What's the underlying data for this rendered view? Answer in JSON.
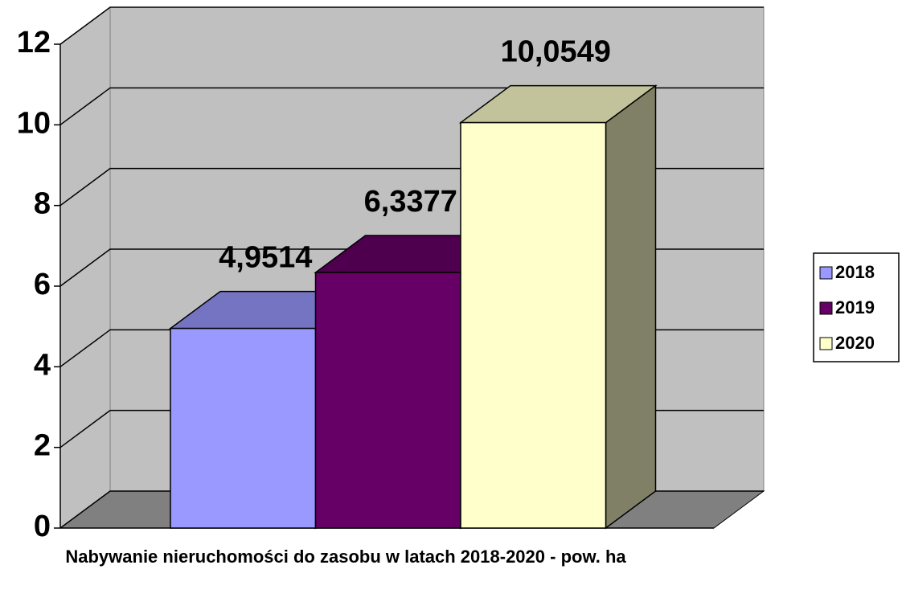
{
  "chart_data": {
    "type": "bar3d",
    "x_label": "Nabywanie nieruchomości do zasobu w latach 2018-2020 - pow. ha",
    "series": [
      {
        "name": "2018",
        "color": "#9999ff",
        "values": [
          4.9514
        ],
        "value_labels": [
          "4,9514"
        ]
      },
      {
        "name": "2019",
        "color": "#660066",
        "values": [
          6.3377
        ],
        "value_labels": [
          "6,3377"
        ]
      },
      {
        "name": "2020",
        "color": "#ffffcc",
        "values": [
          10.0549
        ],
        "value_labels": [
          "10,0549"
        ]
      }
    ],
    "ylim": [
      0,
      12
    ],
    "yticks": [
      0,
      2,
      4,
      6,
      8,
      10,
      12
    ],
    "grid": true,
    "legend": "right"
  }
}
